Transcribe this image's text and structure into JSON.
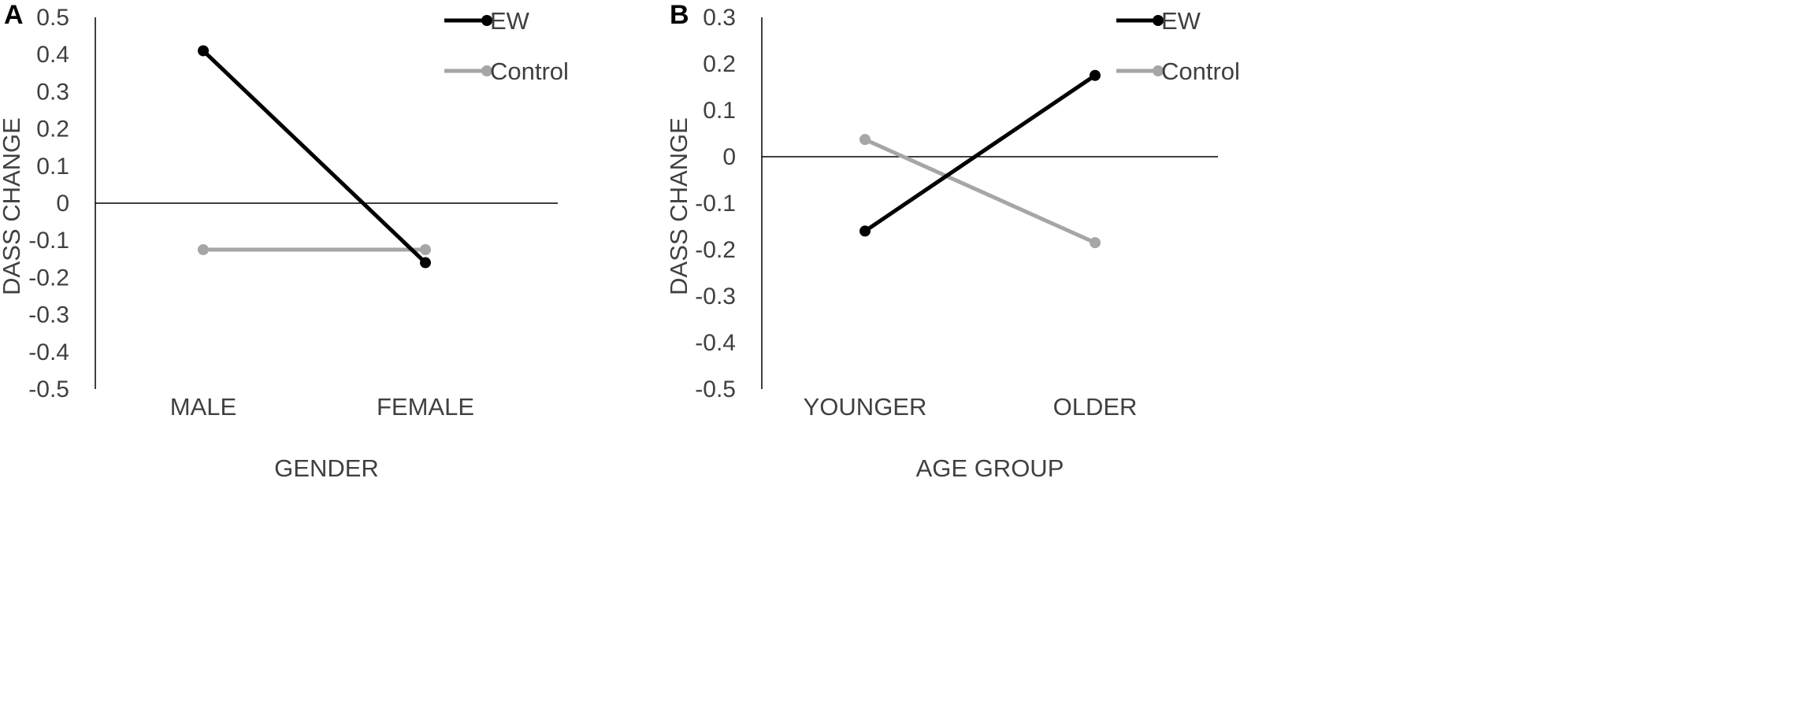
{
  "chart_data": [
    {
      "panel": "A",
      "type": "line",
      "categories": [
        "MALE",
        "FEMALE"
      ],
      "xlabel": "GENDER",
      "ylabel": "DASS CHANGE",
      "ylim": [
        -0.5,
        0.5
      ],
      "yticks": [
        "0.5",
        "0.4",
        "0.3",
        "0.2",
        "0.1",
        "0",
        "-0.1",
        "-0.2",
        "-0.3",
        "-0.4",
        "-0.5"
      ],
      "grid": false,
      "legend_position": "top-right",
      "series": [
        {
          "name": "EW",
          "color": "#000000",
          "values": [
            0.41,
            -0.16
          ]
        },
        {
          "name": "Control",
          "color": "#a6a6a6",
          "values": [
            -0.125,
            -0.125
          ]
        }
      ]
    },
    {
      "panel": "B",
      "type": "line",
      "categories": [
        "YOUNGER",
        "OLDER"
      ],
      "xlabel": "AGE GROUP",
      "ylabel": "DASS CHANGE",
      "ylim": [
        -0.5,
        0.3
      ],
      "yticks": [
        "0.3",
        "0.2",
        "0.1",
        "0",
        "-0.1",
        "-0.2",
        "-0.3",
        "-0.4",
        "-0.5"
      ],
      "grid": false,
      "legend_position": "top-right",
      "series": [
        {
          "name": "EW",
          "color": "#000000",
          "values": [
            -0.16,
            0.175
          ]
        },
        {
          "name": "Control",
          "color": "#a6a6a6",
          "values": [
            0.037,
            -0.185
          ]
        }
      ]
    }
  ]
}
